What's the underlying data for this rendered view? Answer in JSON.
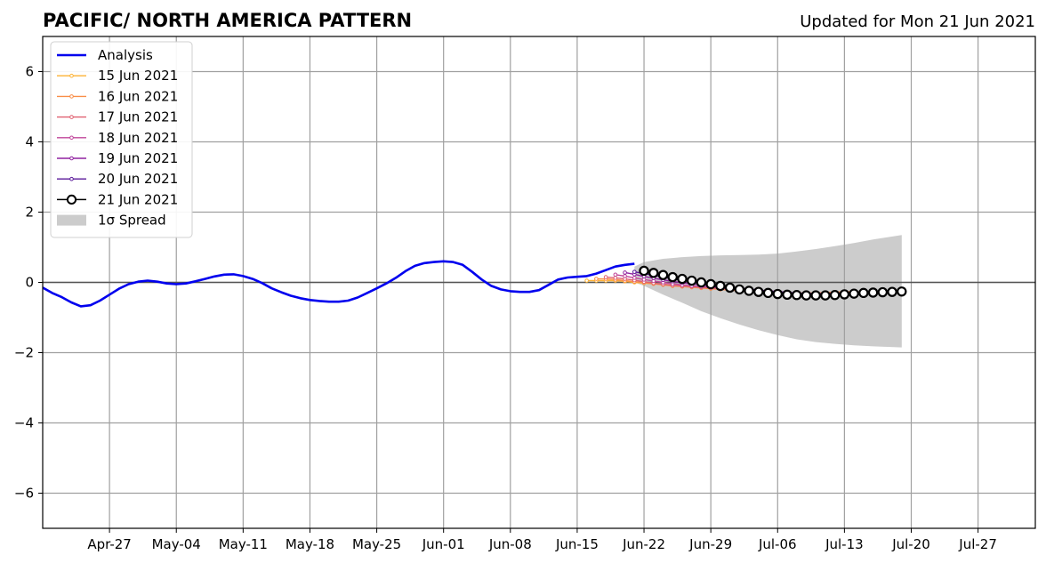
{
  "chart_data": {
    "type": "line",
    "title": "PACIFIC/ NORTH AMERICA PATTERN",
    "subtitle": "Updated for Mon 21 Jun 2021",
    "xlabel": "",
    "ylabel": "",
    "ylim": [
      -7,
      7
    ],
    "yticks": [
      -6,
      -4,
      -2,
      0,
      2,
      4,
      6
    ],
    "ytick_labels": [
      "−6",
      "−4",
      "−2",
      "0",
      "2",
      "4",
      "6"
    ],
    "xlim": [
      "2021-04-20",
      "2021-08-02"
    ],
    "xticks": [
      "2021-04-27",
      "2021-05-04",
      "2021-05-11",
      "2021-05-18",
      "2021-05-25",
      "2021-06-01",
      "2021-06-08",
      "2021-06-15",
      "2021-06-22",
      "2021-06-29",
      "2021-07-06",
      "2021-07-13",
      "2021-07-20",
      "2021-07-27"
    ],
    "xtick_labels": [
      "Apr-27",
      "May-04",
      "May-11",
      "May-18",
      "May-25",
      "Jun-01",
      "Jun-08",
      "Jun-15",
      "Jun-22",
      "Jun-29",
      "Jul-06",
      "Jul-13",
      "Jul-20",
      "Jul-27"
    ],
    "grid": true,
    "legend_position": "top-left",
    "zero_line": 0,
    "analysis": {
      "name": "Analysis",
      "color": "#0000ee",
      "x": [
        "2021-04-20",
        "2021-04-21",
        "2021-04-22",
        "2021-04-23",
        "2021-04-24",
        "2021-04-25",
        "2021-04-26",
        "2021-04-27",
        "2021-04-28",
        "2021-04-29",
        "2021-04-30",
        "2021-05-01",
        "2021-05-02",
        "2021-05-03",
        "2021-05-04",
        "2021-05-05",
        "2021-05-06",
        "2021-05-07",
        "2021-05-08",
        "2021-05-09",
        "2021-05-10",
        "2021-05-11",
        "2021-05-12",
        "2021-05-13",
        "2021-05-14",
        "2021-05-15",
        "2021-05-16",
        "2021-05-17",
        "2021-05-18",
        "2021-05-19",
        "2021-05-20",
        "2021-05-21",
        "2021-05-22",
        "2021-05-23",
        "2021-05-24",
        "2021-05-25",
        "2021-05-26",
        "2021-05-27",
        "2021-05-28",
        "2021-05-29",
        "2021-05-30",
        "2021-05-31",
        "2021-06-01",
        "2021-06-02",
        "2021-06-03",
        "2021-06-04",
        "2021-06-05",
        "2021-06-06",
        "2021-06-07",
        "2021-06-08",
        "2021-06-09",
        "2021-06-10",
        "2021-06-11",
        "2021-06-12",
        "2021-06-13",
        "2021-06-14",
        "2021-06-15",
        "2021-06-16",
        "2021-06-17",
        "2021-06-18",
        "2021-06-19",
        "2021-06-20",
        "2021-06-21"
      ],
      "y": [
        -0.15,
        -0.3,
        -0.42,
        -0.57,
        -0.68,
        -0.65,
        -0.52,
        -0.35,
        -0.18,
        -0.05,
        0.02,
        0.05,
        0.02,
        -0.03,
        -0.05,
        -0.03,
        0.03,
        0.1,
        0.17,
        0.22,
        0.23,
        0.18,
        0.1,
        -0.02,
        -0.17,
        -0.28,
        -0.38,
        -0.45,
        -0.5,
        -0.53,
        -0.55,
        -0.55,
        -0.52,
        -0.43,
        -0.3,
        -0.17,
        -0.03,
        0.13,
        0.32,
        0.47,
        0.55,
        0.58,
        0.6,
        0.58,
        0.5,
        0.3,
        0.08,
        -0.1,
        -0.2,
        -0.25,
        -0.27,
        -0.27,
        -0.22,
        -0.07,
        0.08,
        0.14,
        0.16,
        0.18,
        0.25,
        0.35,
        0.45,
        0.5,
        0.53
      ]
    },
    "forecasts": [
      {
        "name": "15 Jun 2021",
        "color": "#fdb234",
        "marker": "small-dot",
        "x": [
          "2021-06-16",
          "2021-06-17",
          "2021-06-18",
          "2021-06-19",
          "2021-06-20",
          "2021-06-21",
          "2021-06-22",
          "2021-06-23",
          "2021-06-24",
          "2021-06-25",
          "2021-06-26",
          "2021-06-27",
          "2021-06-28",
          "2021-06-29",
          "2021-06-30",
          "2021-07-01",
          "2021-07-02",
          "2021-07-03",
          "2021-07-04",
          "2021-07-05",
          "2021-07-06",
          "2021-07-07",
          "2021-07-08",
          "2021-07-09",
          "2021-07-10",
          "2021-07-11",
          "2021-07-12",
          "2021-07-13"
        ],
        "y": [
          0.05,
          0.05,
          0.05,
          0.05,
          0.03,
          0.0,
          -0.02,
          -0.04,
          -0.06,
          -0.08,
          -0.1,
          -0.12,
          -0.14,
          -0.15,
          -0.17,
          -0.19,
          -0.21,
          -0.23,
          -0.25,
          -0.27,
          -0.28,
          -0.29,
          -0.3,
          -0.3,
          -0.3,
          -0.29,
          -0.28,
          -0.27
        ]
      },
      {
        "name": "16 Jun 2021",
        "color": "#f98e48",
        "marker": "small-dot",
        "x": [
          "2021-06-17",
          "2021-06-18",
          "2021-06-19",
          "2021-06-20",
          "2021-06-21",
          "2021-06-22",
          "2021-06-23",
          "2021-06-24",
          "2021-06-25",
          "2021-06-26",
          "2021-06-27",
          "2021-06-28",
          "2021-06-29",
          "2021-06-30",
          "2021-07-01",
          "2021-07-02",
          "2021-07-03",
          "2021-07-04",
          "2021-07-05",
          "2021-07-06",
          "2021-07-07",
          "2021-07-08",
          "2021-07-09",
          "2021-07-10",
          "2021-07-11",
          "2021-07-12",
          "2021-07-13",
          "2021-07-14"
        ],
        "y": [
          0.1,
          0.1,
          0.08,
          0.05,
          0.02,
          -0.01,
          -0.04,
          -0.07,
          -0.1,
          -0.12,
          -0.14,
          -0.16,
          -0.18,
          -0.2,
          -0.22,
          -0.24,
          -0.26,
          -0.28,
          -0.29,
          -0.3,
          -0.31,
          -0.31,
          -0.31,
          -0.3,
          -0.29,
          -0.28,
          -0.27,
          -0.26
        ]
      },
      {
        "name": "17 Jun 2021",
        "color": "#e06070",
        "marker": "small-dot",
        "x": [
          "2021-06-18",
          "2021-06-19",
          "2021-06-20",
          "2021-06-21",
          "2021-06-22",
          "2021-06-23",
          "2021-06-24",
          "2021-06-25",
          "2021-06-26",
          "2021-06-27",
          "2021-06-28",
          "2021-06-29",
          "2021-06-30",
          "2021-07-01",
          "2021-07-02",
          "2021-07-03",
          "2021-07-04",
          "2021-07-05",
          "2021-07-06",
          "2021-07-07",
          "2021-07-08",
          "2021-07-09",
          "2021-07-10",
          "2021-07-11",
          "2021-07-12",
          "2021-07-13",
          "2021-07-14",
          "2021-07-15"
        ],
        "y": [
          0.15,
          0.13,
          0.1,
          0.06,
          0.02,
          -0.02,
          -0.05,
          -0.08,
          -0.1,
          -0.12,
          -0.14,
          -0.16,
          -0.18,
          -0.2,
          -0.22,
          -0.24,
          -0.26,
          -0.28,
          -0.3,
          -0.31,
          -0.32,
          -0.32,
          -0.32,
          -0.31,
          -0.3,
          -0.29,
          -0.28,
          -0.27
        ]
      },
      {
        "name": "18 Jun 2021",
        "color": "#c0469a",
        "marker": "small-dot",
        "x": [
          "2021-06-19",
          "2021-06-20",
          "2021-06-21",
          "2021-06-22",
          "2021-06-23",
          "2021-06-24",
          "2021-06-25",
          "2021-06-26",
          "2021-06-27",
          "2021-06-28",
          "2021-06-29",
          "2021-06-30",
          "2021-07-01",
          "2021-07-02",
          "2021-07-03",
          "2021-07-04",
          "2021-07-05",
          "2021-07-06",
          "2021-07-07",
          "2021-07-08",
          "2021-07-09",
          "2021-07-10",
          "2021-07-11",
          "2021-07-12",
          "2021-07-13",
          "2021-07-14",
          "2021-07-15",
          "2021-07-16"
        ],
        "y": [
          0.22,
          0.18,
          0.13,
          0.08,
          0.04,
          0.0,
          -0.04,
          -0.07,
          -0.1,
          -0.12,
          -0.14,
          -0.16,
          -0.18,
          -0.2,
          -0.22,
          -0.24,
          -0.26,
          -0.28,
          -0.3,
          -0.31,
          -0.32,
          -0.32,
          -0.32,
          -0.31,
          -0.3,
          -0.29,
          -0.28,
          -0.27
        ]
      },
      {
        "name": "19 Jun 2021",
        "color": "#9022a0",
        "marker": "small-dot",
        "x": [
          "2021-06-20",
          "2021-06-21",
          "2021-06-22",
          "2021-06-23",
          "2021-06-24",
          "2021-06-25",
          "2021-06-26",
          "2021-06-27",
          "2021-06-28",
          "2021-06-29",
          "2021-06-30",
          "2021-07-01",
          "2021-07-02",
          "2021-07-03",
          "2021-07-04",
          "2021-07-05",
          "2021-07-06",
          "2021-07-07",
          "2021-07-08",
          "2021-07-09",
          "2021-07-10",
          "2021-07-11",
          "2021-07-12",
          "2021-07-13",
          "2021-07-14",
          "2021-07-15",
          "2021-07-16",
          "2021-07-17"
        ],
        "y": [
          0.28,
          0.23,
          0.17,
          0.12,
          0.07,
          0.03,
          -0.01,
          -0.04,
          -0.07,
          -0.1,
          -0.13,
          -0.15,
          -0.18,
          -0.2,
          -0.22,
          -0.24,
          -0.26,
          -0.28,
          -0.3,
          -0.31,
          -0.32,
          -0.32,
          -0.32,
          -0.31,
          -0.3,
          -0.29,
          -0.28,
          -0.27
        ]
      },
      {
        "name": "20 Jun 2021",
        "color": "#5a189a",
        "marker": "small-dot",
        "x": [
          "2021-06-21",
          "2021-06-22",
          "2021-06-23",
          "2021-06-24",
          "2021-06-25",
          "2021-06-26",
          "2021-06-27",
          "2021-06-28",
          "2021-06-29",
          "2021-06-30",
          "2021-07-01",
          "2021-07-02",
          "2021-07-03",
          "2021-07-04",
          "2021-07-05",
          "2021-07-06",
          "2021-07-07",
          "2021-07-08",
          "2021-07-09",
          "2021-07-10",
          "2021-07-11",
          "2021-07-12",
          "2021-07-13",
          "2021-07-14",
          "2021-07-15",
          "2021-07-16",
          "2021-07-17",
          "2021-07-18"
        ],
        "y": [
          0.3,
          0.25,
          0.2,
          0.15,
          0.1,
          0.06,
          0.02,
          -0.02,
          -0.06,
          -0.1,
          -0.13,
          -0.16,
          -0.19,
          -0.22,
          -0.25,
          -0.27,
          -0.29,
          -0.31,
          -0.32,
          -0.33,
          -0.33,
          -0.33,
          -0.32,
          -0.31,
          -0.3,
          -0.29,
          -0.28,
          -0.27
        ]
      },
      {
        "name": "21 Jun 2021",
        "color": "#000000",
        "marker": "open-circle",
        "x": [
          "2021-06-22",
          "2021-06-23",
          "2021-06-24",
          "2021-06-25",
          "2021-06-26",
          "2021-06-27",
          "2021-06-28",
          "2021-06-29",
          "2021-06-30",
          "2021-07-01",
          "2021-07-02",
          "2021-07-03",
          "2021-07-04",
          "2021-07-05",
          "2021-07-06",
          "2021-07-07",
          "2021-07-08",
          "2021-07-09",
          "2021-07-10",
          "2021-07-11",
          "2021-07-12",
          "2021-07-13",
          "2021-07-14",
          "2021-07-15",
          "2021-07-16",
          "2021-07-17",
          "2021-07-18",
          "2021-07-19"
        ],
        "y": [
          0.33,
          0.27,
          0.21,
          0.15,
          0.1,
          0.05,
          0.0,
          -0.05,
          -0.1,
          -0.15,
          -0.2,
          -0.24,
          -0.27,
          -0.3,
          -0.33,
          -0.35,
          -0.36,
          -0.37,
          -0.37,
          -0.37,
          -0.36,
          -0.34,
          -0.32,
          -0.3,
          -0.29,
          -0.28,
          -0.27,
          -0.26
        ]
      }
    ],
    "spread": {
      "name": "1σ Spread",
      "color": "#cccccc",
      "x": [
        "2021-06-21",
        "2021-06-22",
        "2021-06-24",
        "2021-06-26",
        "2021-06-28",
        "2021-06-30",
        "2021-07-02",
        "2021-07-04",
        "2021-07-06",
        "2021-07-08",
        "2021-07-10",
        "2021-07-12",
        "2021-07-14",
        "2021-07-16",
        "2021-07-19"
      ],
      "upper": [
        0.45,
        0.58,
        0.67,
        0.72,
        0.75,
        0.77,
        0.78,
        0.79,
        0.82,
        0.88,
        0.95,
        1.03,
        1.12,
        1.22,
        1.35
      ],
      "lower": [
        0.0,
        -0.1,
        -0.35,
        -0.58,
        -0.82,
        -1.02,
        -1.2,
        -1.36,
        -1.5,
        -1.62,
        -1.7,
        -1.75,
        -1.79,
        -1.82,
        -1.85
      ]
    },
    "legend": [
      "Analysis",
      "15 Jun 2021",
      "16 Jun 2021",
      "17 Jun 2021",
      "18 Jun 2021",
      "19 Jun 2021",
      "20 Jun 2021",
      "21 Jun 2021",
      "1σ Spread"
    ]
  }
}
